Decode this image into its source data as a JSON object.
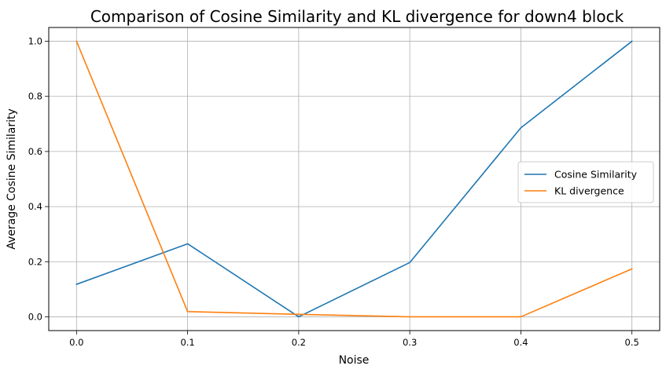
{
  "chart_data": {
    "type": "line",
    "title": "Comparison of Cosine Similarity and KL divergence for down4 block",
    "xlabel": "Noise",
    "ylabel": "Average Cosine Similarity",
    "x": [
      0.0,
      0.1,
      0.2,
      0.3,
      0.4,
      0.5
    ],
    "xticks": [
      "0.0",
      "0.1",
      "0.2",
      "0.3",
      "0.4",
      "0.5"
    ],
    "yticks": [
      "0.0",
      "0.2",
      "0.4",
      "0.6",
      "0.8",
      "1.0"
    ],
    "xlim": [
      -0.025,
      0.525
    ],
    "ylim": [
      -0.05,
      1.05
    ],
    "grid": true,
    "legend_position": "center-right",
    "series": [
      {
        "name": "Cosine Similarity",
        "color": "#1f77b4",
        "values": [
          0.118,
          0.265,
          0.0,
          0.197,
          0.686,
          1.0
        ]
      },
      {
        "name": "KL divergence",
        "color": "#ff7f0e",
        "values": [
          1.0,
          0.019,
          0.009,
          0.0,
          0.0,
          0.174
        ]
      }
    ]
  }
}
